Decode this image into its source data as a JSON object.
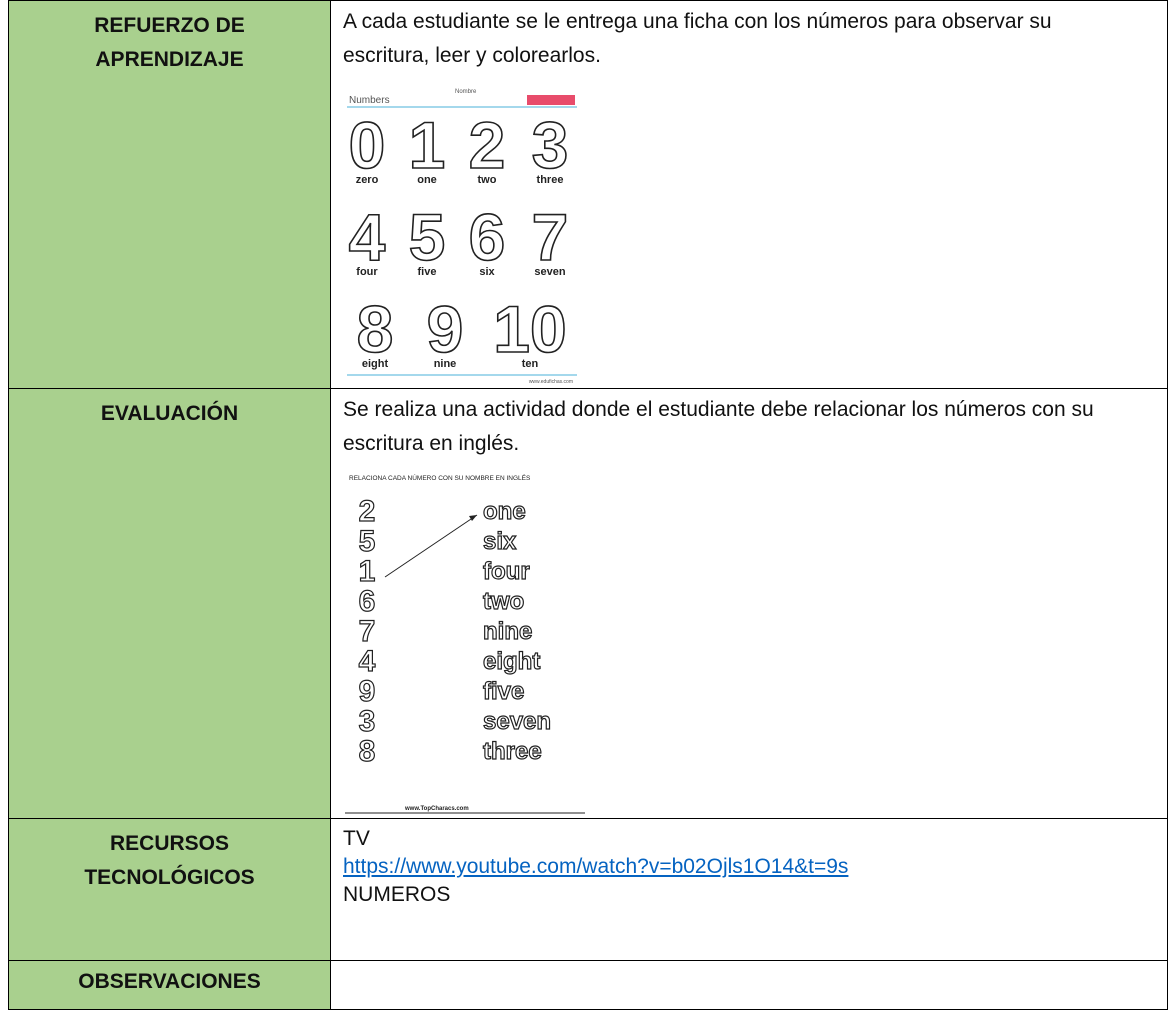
{
  "rows": [
    {
      "label": "REFUERZO DE APRENDIZAJE",
      "text": "A cada estudiante se le entrega una ficha con los números para observar su escritura, leer y colorearlos.",
      "worksheet": {
        "header": "Numbers",
        "name_label": "Nombre",
        "items": [
          {
            "digit": "0",
            "word": "zero"
          },
          {
            "digit": "1",
            "word": "one"
          },
          {
            "digit": "2",
            "word": "two"
          },
          {
            "digit": "3",
            "word": "three"
          },
          {
            "digit": "4",
            "word": "four"
          },
          {
            "digit": "5",
            "word": "five"
          },
          {
            "digit": "6",
            "word": "six"
          },
          {
            "digit": "7",
            "word": "seven"
          },
          {
            "digit": "8",
            "word": "eight"
          },
          {
            "digit": "9",
            "word": "nine"
          },
          {
            "digit": "10",
            "word": "ten"
          }
        ],
        "footer": "www.edufichas.com"
      }
    },
    {
      "label": "EVALUACIÓN",
      "text": "Se realiza una actividad donde el estudiante debe relacionar los números con su escritura en inglés.",
      "worksheet": {
        "title": "RELACIONA CADA NÚMERO CON SU NOMBRE EN INGLÉS",
        "digits": [
          "2",
          "5",
          "1",
          "6",
          "7",
          "4",
          "9",
          "3",
          "8"
        ],
        "words": [
          "one",
          "six",
          "four",
          "two",
          "nine",
          "eight",
          "five",
          "seven",
          "three"
        ],
        "footer": "www.TopCharacs.com"
      }
    },
    {
      "label": "RECURSOS TECNOLÓGICOS",
      "lines": [
        "TV",
        "https://www.youtube.com/watch?v=b02Ojls1O14&t=9s",
        "NUMEROS"
      ]
    },
    {
      "label": "OBSERVACIONES"
    }
  ]
}
